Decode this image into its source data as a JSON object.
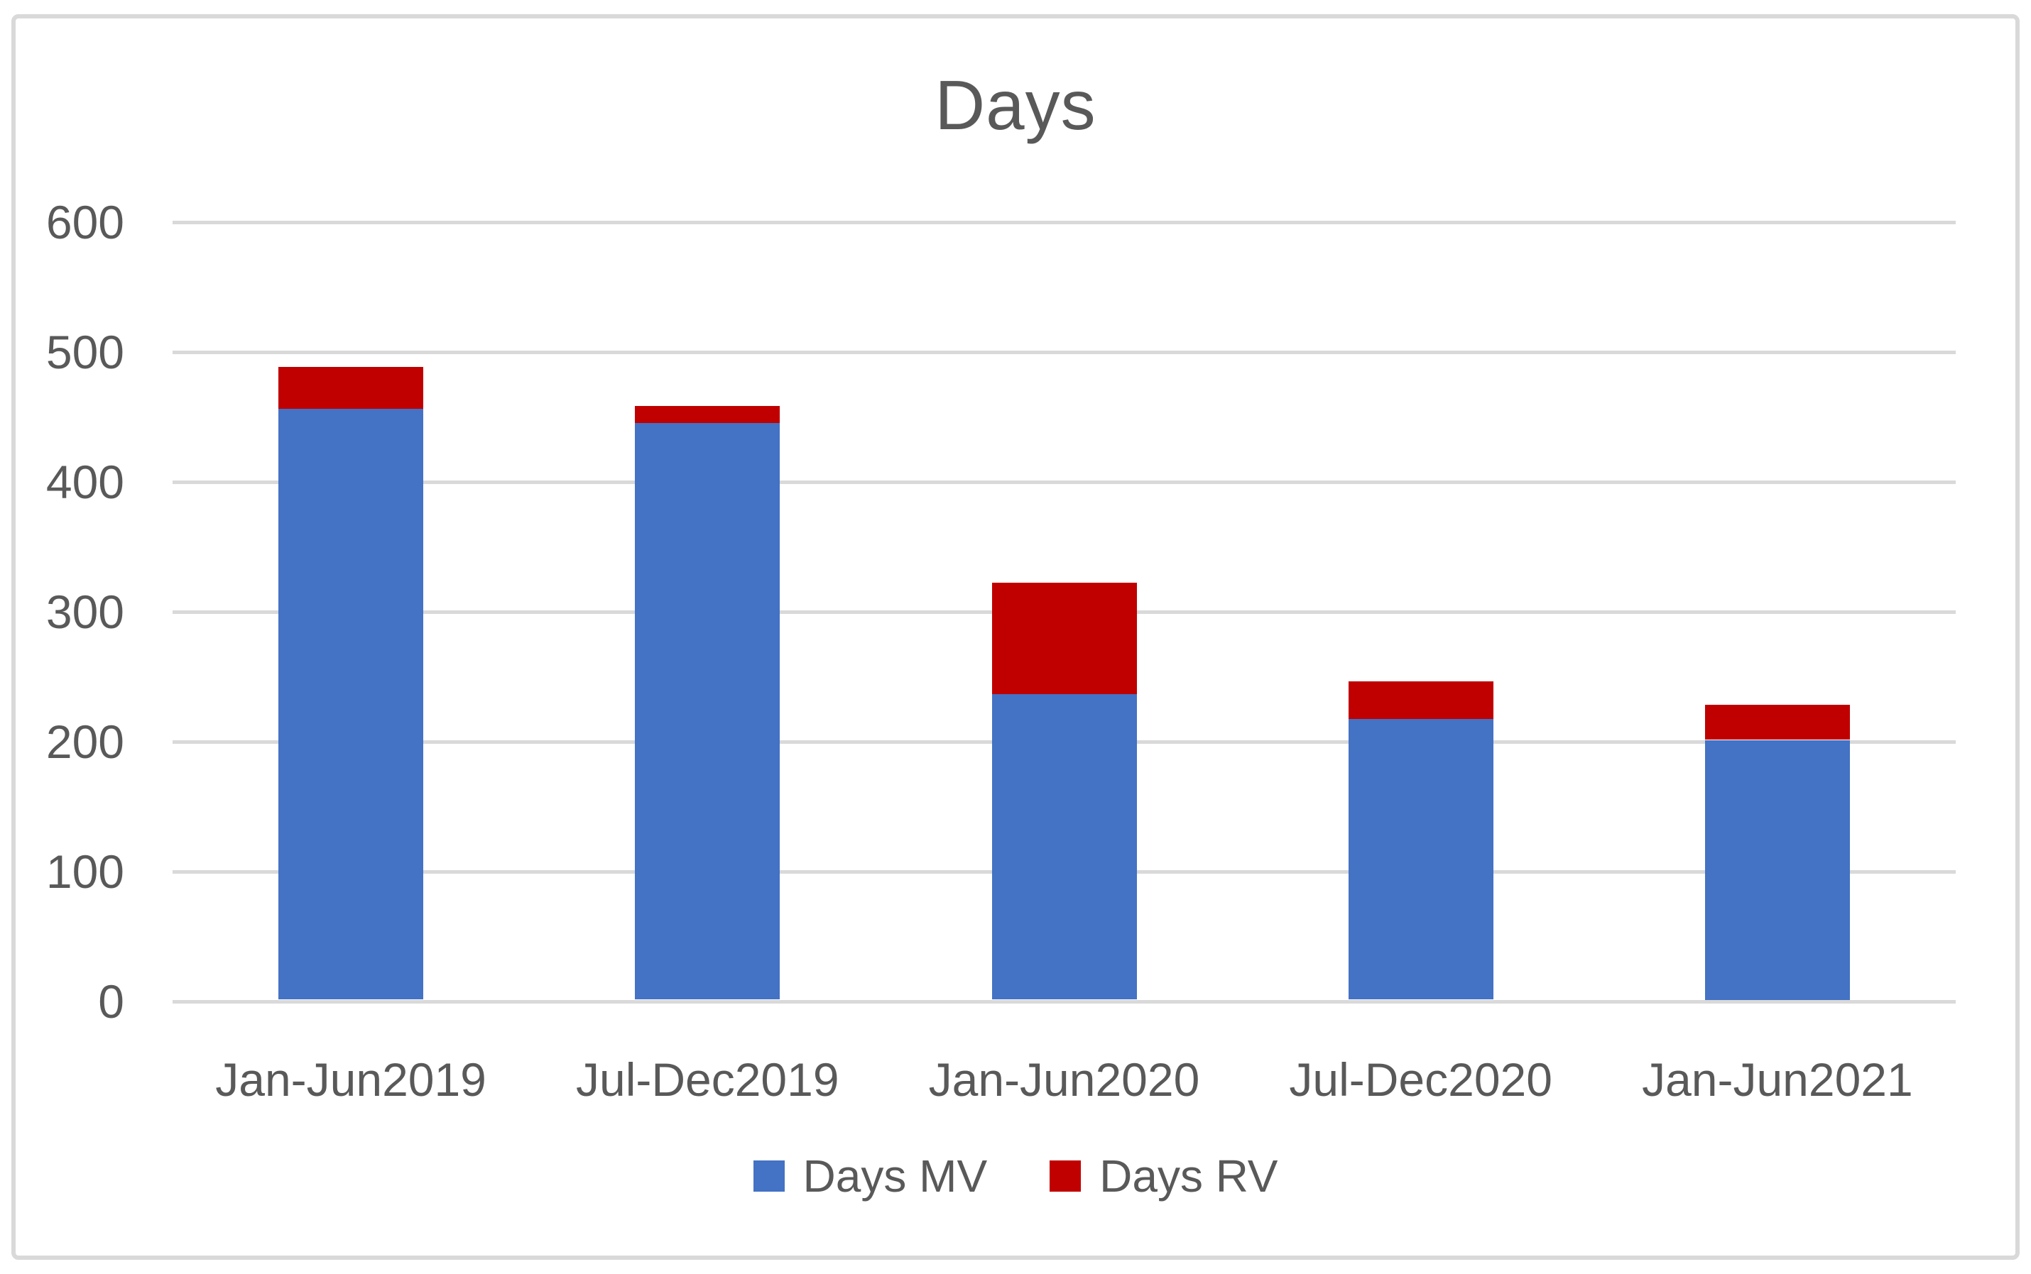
{
  "chart_data": {
    "type": "bar",
    "stacked": true,
    "title": "Days",
    "categories": [
      "Jan-Jun2019",
      "Jul-Dec2019",
      "Jan-Jun2020",
      "Jul-Dec2020",
      "Jan-Jun2021"
    ],
    "series": [
      {
        "name": "Days MV",
        "color": "#4472C4",
        "values": [
          455,
          444,
          235,
          216,
          200
        ]
      },
      {
        "name": "Days RV",
        "color": "#C00000",
        "values": [
          32,
          13,
          86,
          29,
          27
        ]
      }
    ],
    "stack_totals": [
      487,
      457,
      321,
      245,
      227
    ],
    "xlabel": "",
    "ylabel": "",
    "ylim": [
      0,
      600
    ],
    "yticks": [
      0,
      100,
      200,
      300,
      400,
      500,
      600
    ],
    "grid": "horizontal",
    "legend_position": "bottom",
    "colors": {
      "gridline": "#D9D9D9",
      "axis_text": "#595959",
      "title_text": "#595959",
      "frame_border": "#D9D9D9",
      "background": "#FFFFFF"
    }
  }
}
